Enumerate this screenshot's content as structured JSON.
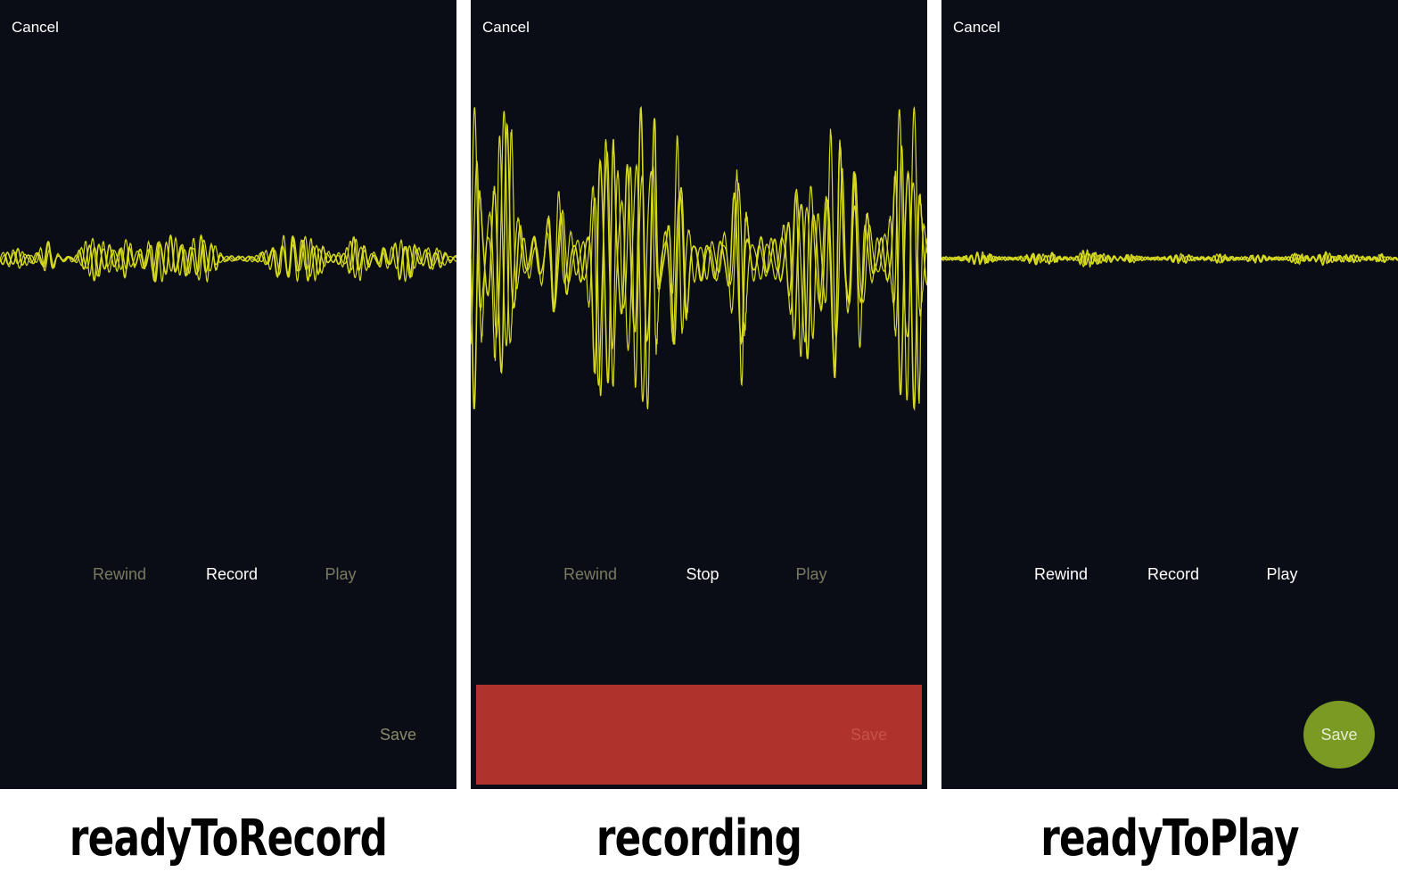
{
  "colors": {
    "panel_bg": "#0a0d15",
    "waveform": "#d6d91e",
    "text_active": "#ffffff",
    "text_disabled": "#7a7a60",
    "save_disabled_text": "#8a8a6a",
    "recording_banner": "#b0322c",
    "recording_save_text": "#c4534c",
    "save_circle": "#7a9a23",
    "save_circle_text": "#e6edd6"
  },
  "panels": [
    {
      "cancel": "Cancel",
      "rewind": "Rewind",
      "record": "Record",
      "play": "Play",
      "save": "Save",
      "state_label": "readyToRecord",
      "waveform_icon": "audio-waveform-low-amplitude"
    },
    {
      "cancel": "Cancel",
      "rewind": "Rewind",
      "stop": "Stop",
      "play": "Play",
      "save": "Save",
      "state_label": "recording",
      "waveform_icon": "audio-waveform-high-amplitude"
    },
    {
      "cancel": "Cancel",
      "rewind": "Rewind",
      "record": "Record",
      "play": "Play",
      "save": "Save",
      "state_label": "readyToPlay",
      "waveform_icon": "audio-waveform-flat"
    }
  ]
}
